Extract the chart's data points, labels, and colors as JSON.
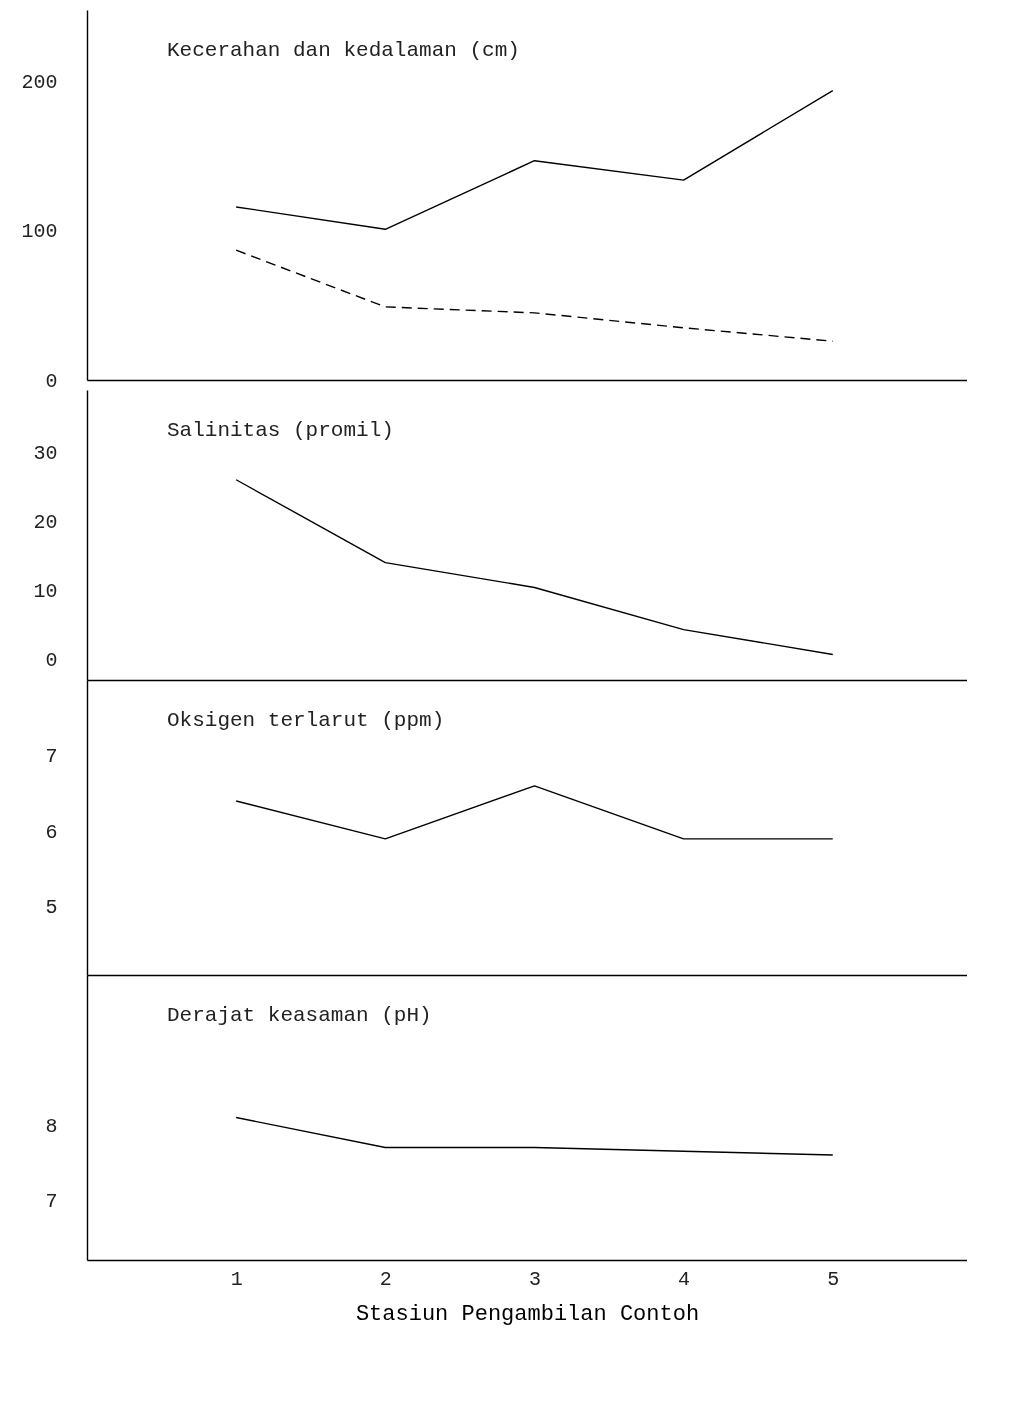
{
  "chart_data": [
    {
      "type": "line",
      "title": "Kecerahan dan kedalaman (cm)",
      "x": [
        1,
        2,
        3,
        4,
        5
      ],
      "xlim": [
        0,
        5.9
      ],
      "xticks": [
        1,
        2,
        3,
        4,
        5
      ],
      "ylim": [
        0,
        248
      ],
      "yticks": [
        0,
        100,
        200
      ],
      "tick_labels": "y",
      "grid": false,
      "series": [
        {
          "color": "#000000",
          "line_style": "solid",
          "values": [
            116,
            101,
            147,
            134,
            194
          ]
        },
        {
          "color": "#000000",
          "line_style": "dashed",
          "values": [
            87,
            49,
            45,
            35,
            26
          ]
        }
      ]
    },
    {
      "type": "line",
      "title": "Salinitas (promil)",
      "x": [
        1,
        2,
        3,
        4,
        5
      ],
      "xlim": [
        0,
        5.9
      ],
      "xticks": [
        1,
        2,
        3,
        4,
        5
      ],
      "ylim": [
        -3,
        39
      ],
      "yticks": [
        0,
        10,
        20,
        30
      ],
      "tick_labels": "y",
      "grid": false,
      "series": [
        {
          "color": "#000000",
          "line_style": "solid",
          "values": [
            26,
            14,
            10.4,
            4.3,
            0.7
          ]
        }
      ]
    },
    {
      "type": "line",
      "title": "Oksigen terlarut (ppm)",
      "x": [
        1,
        2,
        3,
        4,
        5
      ],
      "xlim": [
        0,
        5.9
      ],
      "xticks": [
        1,
        2,
        3,
        4,
        5
      ],
      "ylim": [
        4.1,
        8
      ],
      "yticks": [
        5,
        6,
        7
      ],
      "tick_labels": "y",
      "grid": false,
      "series": [
        {
          "color": "#000000",
          "line_style": "solid",
          "values": [
            6.4,
            5.9,
            6.6,
            5.9,
            5.9
          ]
        }
      ]
    },
    {
      "type": "line",
      "title": "Derajat keasaman (pH)",
      "xlabel": "Stasiun Pengambilan Contoh",
      "x": [
        1,
        2,
        3,
        4,
        5
      ],
      "xlim": [
        0,
        5.9
      ],
      "xticks": [
        1,
        2,
        3,
        4,
        5
      ],
      "ylim": [
        6.2,
        10
      ],
      "yticks": [
        7,
        8
      ],
      "grid": false,
      "series": [
        {
          "color": "#000000",
          "line_style": "solid",
          "values": [
            8.1,
            7.7,
            7.7,
            7.65,
            7.6
          ]
        }
      ]
    }
  ]
}
